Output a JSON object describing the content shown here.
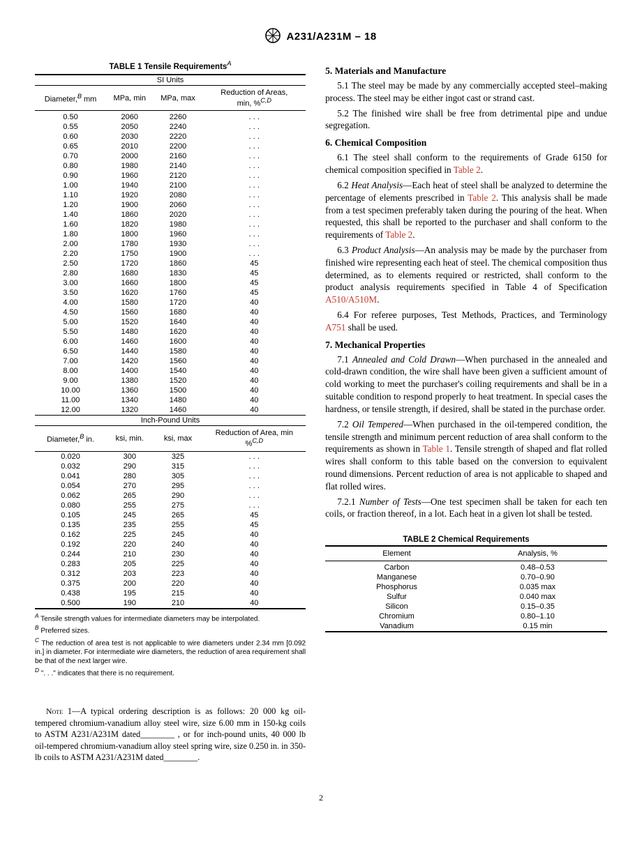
{
  "header": {
    "designation": "A231/A231M – 18"
  },
  "table1": {
    "title": "TABLE 1 Tensile Requirements",
    "title_sup": "A",
    "si_label": "SI Units",
    "ip_label": "Inch-Pound Units",
    "si_headers": {
      "diameter": "Diameter,",
      "diameter_sup": "B",
      "diameter_unit": " mm",
      "mpa_min": "MPa, min",
      "mpa_max": "MPa, max",
      "red": "Reduction of Areas,",
      "red_sub": "min, %",
      "red_sup": "C,D"
    },
    "ip_headers": {
      "diameter": "Diameter,",
      "diameter_sup": "B",
      "diameter_unit": " in.",
      "ksi_min": "ksi, min.",
      "ksi_max": "ksi, max",
      "red": "Reduction of Area, min",
      "red_sub": "%",
      "red_sup": "C,D"
    },
    "si_rows": [
      [
        "0.50",
        "2060",
        "2260",
        ". . ."
      ],
      [
        "0.55",
        "2050",
        "2240",
        ". . ."
      ],
      [
        "0.60",
        "2030",
        "2220",
        ". . ."
      ],
      [
        "0.65",
        "2010",
        "2200",
        ". . ."
      ],
      [
        "0.70",
        "2000",
        "2160",
        ". . ."
      ],
      [
        "0.80",
        "1980",
        "2140",
        ". . ."
      ],
      [
        "0.90",
        "1960",
        "2120",
        ". . ."
      ],
      [
        "1.00",
        "1940",
        "2100",
        ". . ."
      ],
      [
        "1.10",
        "1920",
        "2080",
        ". . ."
      ],
      [
        "1.20",
        "1900",
        "2060",
        ". . ."
      ],
      [
        "1.40",
        "1860",
        "2020",
        ". . ."
      ],
      [
        "1.60",
        "1820",
        "1980",
        ". . ."
      ],
      [
        "1.80",
        "1800",
        "1960",
        ". . ."
      ],
      [
        "2.00",
        "1780",
        "1930",
        ". . ."
      ],
      [
        "2.20",
        "1750",
        "1900",
        ". . ."
      ],
      [
        "2.50",
        "1720",
        "1860",
        "45"
      ],
      [
        "2.80",
        "1680",
        "1830",
        "45"
      ],
      [
        "3.00",
        "1660",
        "1800",
        "45"
      ],
      [
        "3.50",
        "1620",
        "1760",
        "45"
      ],
      [
        "4.00",
        "1580",
        "1720",
        "40"
      ],
      [
        "4.50",
        "1560",
        "1680",
        "40"
      ],
      [
        "5.00",
        "1520",
        "1640",
        "40"
      ],
      [
        "5.50",
        "1480",
        "1620",
        "40"
      ],
      [
        "6.00",
        "1460",
        "1600",
        "40"
      ],
      [
        "6.50",
        "1440",
        "1580",
        "40"
      ],
      [
        "7.00",
        "1420",
        "1560",
        "40"
      ],
      [
        "8.00",
        "1400",
        "1540",
        "40"
      ],
      [
        "9.00",
        "1380",
        "1520",
        "40"
      ],
      [
        "10.00",
        "1360",
        "1500",
        "40"
      ],
      [
        "11.00",
        "1340",
        "1480",
        "40"
      ],
      [
        "12.00",
        "1320",
        "1460",
        "40"
      ]
    ],
    "ip_rows": [
      [
        "0.020",
        "300",
        "325",
        ". . ."
      ],
      [
        "0.032",
        "290",
        "315",
        ". . ."
      ],
      [
        "0.041",
        "280",
        "305",
        ". . ."
      ],
      [
        "0.054",
        "270",
        "295",
        ". . ."
      ],
      [
        "0.062",
        "265",
        "290",
        ". . ."
      ],
      [
        "0.080",
        "255",
        "275",
        ". . ."
      ],
      [
        "0.105",
        "245",
        "265",
        "45"
      ],
      [
        "0.135",
        "235",
        "255",
        "45"
      ],
      [
        "0.162",
        "225",
        "245",
        "40"
      ],
      [
        "0.192",
        "220",
        "240",
        "40"
      ],
      [
        "0.244",
        "210",
        "230",
        "40"
      ],
      [
        "0.283",
        "205",
        "225",
        "40"
      ],
      [
        "0.312",
        "203",
        "223",
        "40"
      ],
      [
        "0.375",
        "200",
        "220",
        "40"
      ],
      [
        "0.438",
        "195",
        "215",
        "40"
      ],
      [
        "0.500",
        "190",
        "210",
        "40"
      ]
    ],
    "footnotes": {
      "A": "Tensile strength values for intermediate diameters may be interpolated.",
      "B": "Preferred sizes.",
      "C": "The reduction of area test is not applicable to wire diameters under 2.34 mm [0.092 in.] in diameter. For intermediate wire diameters, the reduction of area requirement shall be that of the next larger wire.",
      "D": "\". . .\" indicates that there is no requirement."
    }
  },
  "note1": {
    "label": "Note",
    "num": "1",
    "text": "—A typical ordering description is as follows: 20 000 kg oil-tempered chromium-vanadium alloy steel wire, size 6.00 mm in 150-kg coils to ASTM A231/A231M dated________ , or for inch-pound units, 40 000 lb oil-tempered chromium-vanadium alloy steel spring wire, size 0.250 in. in 350-lb coils to ASTM A231/A231M dated________."
  },
  "right": {
    "s5": {
      "title": "5. Materials and Manufacture",
      "p51": "5.1 The steel may be made by any commercially accepted steel–making process. The steel may be either ingot cast or strand cast.",
      "p52": "5.2 The finished wire shall be free from detrimental pipe and undue segregation."
    },
    "s6": {
      "title": "6. Chemical Composition",
      "p61a": "6.1 The steel shall conform to the requirements of Grade 6150 for chemical composition specified in ",
      "p61_link": "Table 2",
      "p61b": ".",
      "p62_lead": "6.2 ",
      "p62_it": "Heat Analysis",
      "p62a": "—Each heat of steel shall be analyzed to determine the percentage of elements prescribed in ",
      "p62_link": "Table 2",
      "p62b": ". This analysis shall be made from a test specimen preferably taken during the pouring of the heat. When requested, this shall be reported to the purchaser and shall conform to the requirements of ",
      "p62_link2": "Table 2",
      "p62c": ".",
      "p63_lead": "6.3 ",
      "p63_it": "Product Analysis",
      "p63a": "—An analysis may be made by the purchaser from finished wire representing each heat of steel. The chemical composition thus determined, as to elements required or restricted, shall conform to the product analysis requirements specified in Table 4 of Specification ",
      "p63_link": "A510/A510M",
      "p63b": ".",
      "p64a": "6.4 For referee purposes, Test Methods, Practices, and Terminology ",
      "p64_link": "A751",
      "p64b": " shall be used."
    },
    "s7": {
      "title": "7. Mechanical Properties",
      "p71_lead": "7.1 ",
      "p71_it": "Annealed and Cold Drawn",
      "p71": "—When purchased in the annealed and cold-drawn condition, the wire shall have been given a sufficient amount of cold working to meet the purchaser's coiling requirements and shall be in a suitable condition to respond properly to heat treatment. In special cases the hardness, or tensile strength, if desired, shall be stated in the purchase order.",
      "p72_lead": "7.2 ",
      "p72_it": "Oil Tempered",
      "p72a": "—When purchased in the oil-tempered condition, the tensile strength and minimum percent reduction of area shall conform to the requirements as shown in ",
      "p72_link": "Table 1",
      "p72b": ". Tensile strength of shaped and flat rolled wires shall conform to this table based on the conversion to equivalent round dimensions. Percent reduction of area is not applicable to shaped and flat rolled wires.",
      "p721_lead": "7.2.1 ",
      "p721_it": "Number of Tests",
      "p721": "—One test specimen shall be taken for each ten coils, or fraction thereof, in a lot. Each heat in a given lot shall be tested."
    }
  },
  "table2": {
    "title": "TABLE 2 Chemical Requirements",
    "headers": {
      "element": "Element",
      "analysis": "Analysis, %"
    },
    "rows": [
      [
        "Carbon",
        "0.48–0.53"
      ],
      [
        "Manganese",
        "0.70–0.90"
      ],
      [
        "Phosphorus",
        "0.035 max"
      ],
      [
        "Sulfur",
        "0.040 max"
      ],
      [
        "Silicon",
        "0.15–0.35"
      ],
      [
        "Chromium",
        "0.80–1.10"
      ],
      [
        "Vanadium",
        "0.15 min"
      ]
    ]
  },
  "page_num": "2"
}
